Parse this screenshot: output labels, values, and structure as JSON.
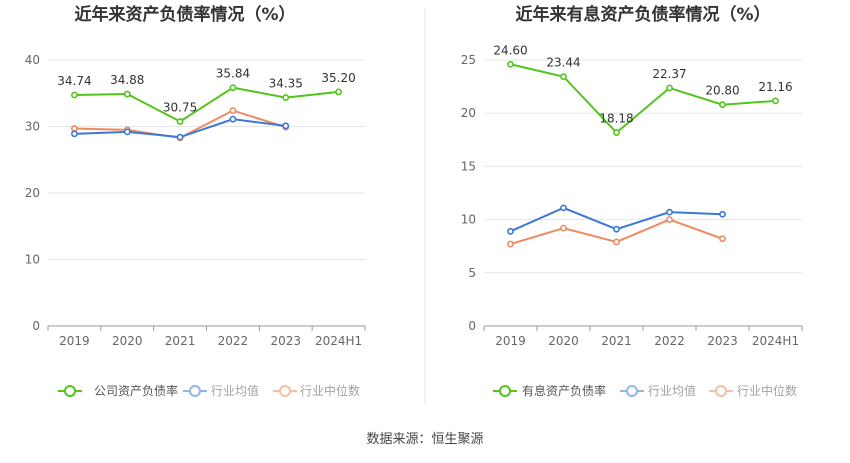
{
  "source": "数据来源：恒生聚源",
  "colors": {
    "green": "#52c41a",
    "blue": "#3b78d8",
    "orange": "#ee8a5f",
    "grid": "#e6e6e6",
    "axis": "#999999"
  },
  "chart_data": [
    {
      "type": "line",
      "title": "近年来资产负债率情况（%）",
      "categories": [
        "2019",
        "2020",
        "2021",
        "2022",
        "2023",
        "2024H1"
      ],
      "ylim": [
        0,
        40
      ],
      "yticks": [
        "0",
        "10",
        "20",
        "30",
        "40"
      ],
      "series": [
        {
          "name": "公司资产负债率",
          "color": "#52c41a",
          "values": [
            34.74,
            34.88,
            30.75,
            35.84,
            34.35,
            35.2
          ],
          "labels": [
            "34.74",
            "34.88",
            "30.75",
            "35.84",
            "34.35",
            "35.20"
          ]
        },
        {
          "name": "行业均值",
          "color": "#3b78d8",
          "values": [
            28.9,
            29.2,
            28.4,
            31.1,
            30.1,
            null
          ]
        },
        {
          "name": "行业中位数",
          "color": "#ee8a5f",
          "values": [
            29.7,
            29.5,
            28.3,
            32.4,
            29.9,
            null
          ]
        }
      ],
      "legend": "bottom"
    },
    {
      "type": "line",
      "title": "近年来有息资产负债率情况（%）",
      "categories": [
        "2019",
        "2020",
        "2021",
        "2022",
        "2023",
        "2024H1"
      ],
      "ylim": [
        0,
        25
      ],
      "yticks": [
        "0",
        "5",
        "10",
        "15",
        "20",
        "25"
      ],
      "series": [
        {
          "name": "有息资产负债率",
          "color": "#52c41a",
          "values": [
            24.6,
            23.44,
            18.18,
            22.37,
            20.8,
            21.16
          ],
          "labels": [
            "24.60",
            "23.44",
            "18.18",
            "22.37",
            "20.80",
            "21.16"
          ]
        },
        {
          "name": "行业均值",
          "color": "#3b78d8",
          "values": [
            8.9,
            11.1,
            9.1,
            10.7,
            10.5,
            null
          ]
        },
        {
          "name": "行业中位数",
          "color": "#ee8a5f",
          "values": [
            7.7,
            9.2,
            7.9,
            10.0,
            8.2,
            null
          ]
        }
      ],
      "legend": "bottom"
    }
  ]
}
